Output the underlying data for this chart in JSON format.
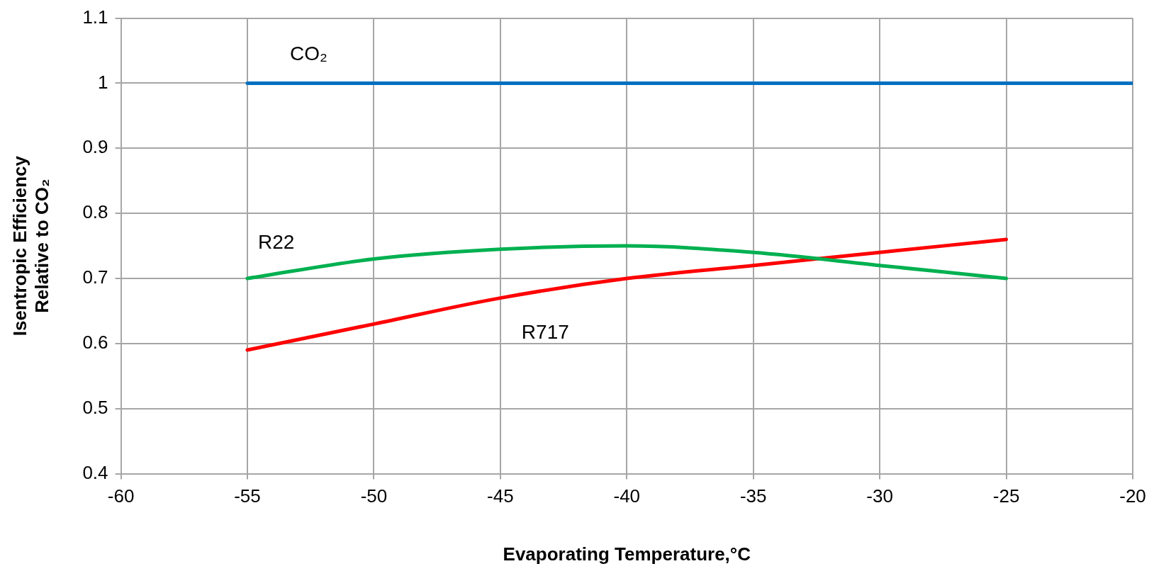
{
  "chart_data": {
    "type": "line",
    "xlabel": "Evaporating Temperature,°C",
    "ylabel": "Isentropic Efficiency Relative to CO₂",
    "xlim": [
      -60,
      -20
    ],
    "xticks": [
      -60,
      -55,
      -50,
      -45,
      -40,
      -35,
      -30,
      -25,
      -20
    ],
    "ylim": [
      0.4,
      1.1
    ],
    "yticks": [
      0.4,
      0.5,
      0.6,
      0.7,
      0.8,
      0.9,
      1,
      1.1
    ],
    "grid": true,
    "legend": false,
    "marker": "none",
    "line_style": "solid",
    "series": [
      {
        "name": "CO₂",
        "color": "#0070c0",
        "x": [
          -55,
          -50,
          -45,
          -40,
          -35,
          -30,
          -25,
          -20
        ],
        "values": [
          1,
          1,
          1,
          1,
          1,
          1,
          1,
          1
        ]
      },
      {
        "name": "R22",
        "color": "#00b050",
        "x": [
          -55,
          -50,
          -45,
          -40,
          -35,
          -30,
          -25
        ],
        "values": [
          0.7,
          0.73,
          0.745,
          0.75,
          0.74,
          0.72,
          0.7
        ]
      },
      {
        "name": "R717",
        "color": "#ff0000",
        "x": [
          -55,
          -50,
          -45,
          -40,
          -35,
          -30,
          -25
        ],
        "values": [
          0.59,
          0.63,
          0.67,
          0.7,
          0.72,
          0.74,
          0.76
        ]
      }
    ]
  }
}
